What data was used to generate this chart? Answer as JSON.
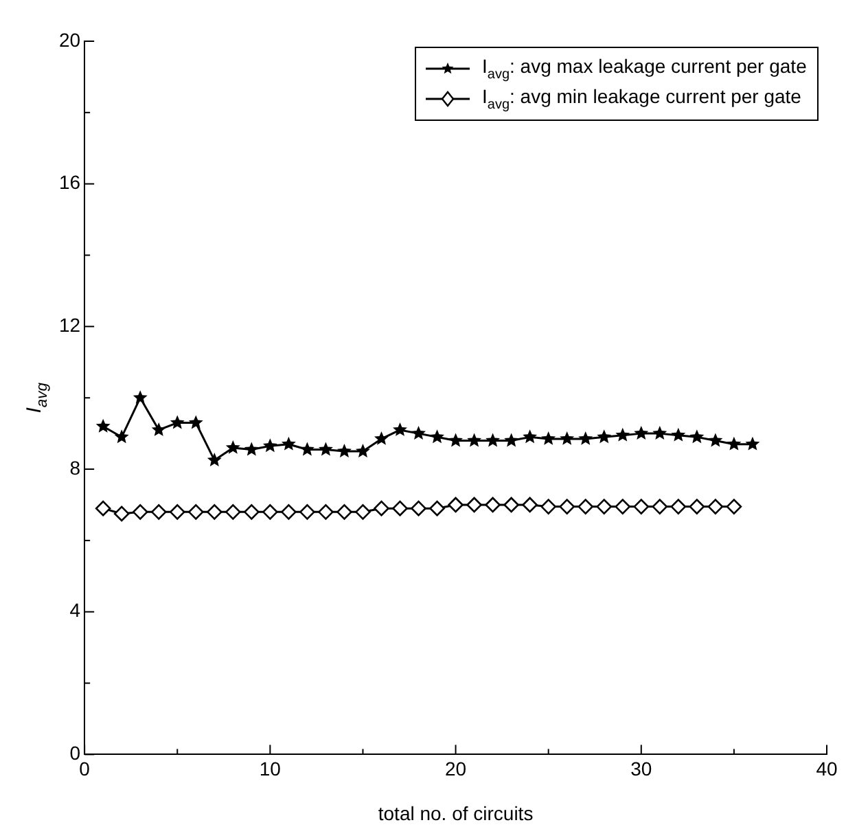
{
  "chart_data": {
    "type": "line",
    "xlabel": "total no. of circuits",
    "ylabel": "I$_{avg}$",
    "legend": "top right",
    "grid": false,
    "xlim": [
      0,
      40
    ],
    "xticks": [
      0,
      {
        "value": 5,
        "label": null
      },
      10,
      {
        "value": 15,
        "label": null
      },
      20,
      {
        "value": 25,
        "label": null
      },
      30,
      {
        "value": 35,
        "label": null
      },
      40
    ],
    "ylim": [
      0,
      20
    ],
    "yticks": [
      0,
      {
        "value": 2,
        "label": null
      },
      4,
      {
        "value": 6,
        "label": null
      },
      8,
      {
        "value": 10,
        "label": null
      },
      12,
      {
        "value": 14,
        "label": null
      },
      16,
      {
        "value": 18,
        "label": null
      },
      20
    ],
    "series": [
      {
        "name": "I$_{avg}$: avg max leakage current per gate",
        "color": "#000000",
        "marker": "star",
        "line_style": "solid",
        "x": [
          1,
          2,
          3,
          4,
          5,
          6,
          7,
          8,
          9,
          10,
          11,
          12,
          13,
          14,
          15,
          16,
          17,
          18,
          19,
          20,
          21,
          22,
          23,
          24,
          25,
          26,
          27,
          28,
          29,
          30,
          31,
          32,
          33,
          34,
          35,
          36
        ],
        "values": [
          9.2,
          8.9,
          10.0,
          9.1,
          9.3,
          9.3,
          8.25,
          8.6,
          8.55,
          8.65,
          8.7,
          8.55,
          8.55,
          8.5,
          8.5,
          8.85,
          9.1,
          9.0,
          8.9,
          8.8,
          8.8,
          8.8,
          8.8,
          8.9,
          8.85,
          8.85,
          8.85,
          8.9,
          8.95,
          9.0,
          9.0,
          8.95,
          8.9,
          8.8,
          8.7,
          8.7
        ]
      },
      {
        "name": "I$_{avg}$: avg min leakage current per gate",
        "color": "#000000",
        "marker": "diamond",
        "line_style": "solid",
        "x": [
          1,
          2,
          3,
          4,
          5,
          6,
          7,
          8,
          9,
          10,
          11,
          12,
          13,
          14,
          15,
          16,
          17,
          18,
          19,
          20,
          21,
          22,
          23,
          24,
          25,
          26,
          27,
          28,
          29,
          30,
          31,
          32,
          33,
          34,
          35
        ],
        "values": [
          6.9,
          6.75,
          6.8,
          6.8,
          6.8,
          6.8,
          6.8,
          6.8,
          6.8,
          6.8,
          6.8,
          6.8,
          6.8,
          6.8,
          6.8,
          6.9,
          6.9,
          6.9,
          6.9,
          7.0,
          7.0,
          7.0,
          7.0,
          7.0,
          6.95,
          6.95,
          6.95,
          6.95,
          6.95,
          6.95,
          6.95,
          6.95,
          6.95,
          6.95,
          6.95
        ]
      }
    ]
  }
}
